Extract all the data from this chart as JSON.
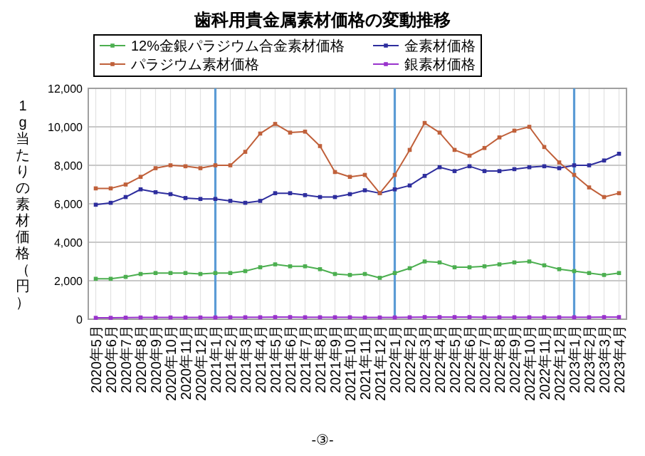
{
  "chart_data": {
    "type": "line",
    "title": "歯科用貴金属素材価格の変動推移",
    "ylabel": "1g当たりの素材価格（円）",
    "categories": [
      "2020年5月",
      "2020年6月",
      "2020年7月",
      "2020年8月",
      "2020年9月",
      "2020年10月",
      "2020年11月",
      "2020年12月",
      "2021年1月",
      "2021年2月",
      "2021年3月",
      "2021年4月",
      "2021年5月",
      "2021年6月",
      "2021年7月",
      "2021年8月",
      "2021年9月",
      "2021年10月",
      "2021年11月",
      "2021年12月",
      "2022年1月",
      "2022年2月",
      "2022年3月",
      "2022年4月",
      "2022年5月",
      "2022年6月",
      "2022年7月",
      "2022年8月",
      "2022年9月",
      "2022年10月",
      "2022年11月",
      "2022年12月",
      "2023年1月",
      "2023年2月",
      "2023年3月",
      "2023年4月"
    ],
    "series": [
      {
        "name": "12%金銀パラジウム合金素材価格",
        "color": "#4caf50",
        "values": [
          2100,
          2100,
          2200,
          2350,
          2400,
          2400,
          2400,
          2350,
          2400,
          2400,
          2500,
          2700,
          2850,
          2750,
          2750,
          2600,
          2350,
          2300,
          2350,
          2150,
          2400,
          2650,
          3000,
          2950,
          2700,
          2700,
          2750,
          2850,
          2950,
          3000,
          2800,
          2600,
          2500,
          2400,
          2300,
          2400
        ]
      },
      {
        "name": "金素材価格",
        "color": "#2e2e9e",
        "values": [
          5950,
          6050,
          6350,
          6750,
          6600,
          6500,
          6300,
          6250,
          6250,
          6150,
          6050,
          6150,
          6550,
          6550,
          6450,
          6350,
          6350,
          6500,
          6700,
          6550,
          6750,
          6950,
          7450,
          7900,
          7700,
          7950,
          7700,
          7700,
          7800,
          7900,
          7950,
          7850,
          8000,
          8000,
          8250,
          8600
        ]
      },
      {
        "name": "パラジウム素材価格",
        "color": "#c0603a",
        "values": [
          6800,
          6800,
          7000,
          7400,
          7850,
          8000,
          7950,
          7850,
          8000,
          8000,
          8700,
          9650,
          10150,
          9700,
          9750,
          9000,
          7650,
          7400,
          7500,
          6550,
          7500,
          8800,
          10200,
          9700,
          8800,
          8500,
          8900,
          9450,
          9800,
          10000,
          8950,
          8150,
          7500,
          6850,
          6350,
          6550
        ]
      },
      {
        "name": "銀素材価格",
        "color": "#9933cc",
        "values": [
          70,
          70,
          80,
          90,
          90,
          90,
          90,
          90,
          90,
          100,
          100,
          100,
          110,
          110,
          100,
          100,
          100,
          100,
          90,
          90,
          90,
          100,
          110,
          110,
          110,
          110,
          100,
          100,
          100,
          100,
          100,
          100,
          100,
          100,
          110,
          110
        ]
      }
    ],
    "ylim": [
      0,
      12000
    ],
    "yticks": [
      0,
      {
        "value": 2000,
        "label": "2,000"
      },
      {
        "value": 4000,
        "label": "4,000"
      },
      {
        "value": 6000,
        "label": "6,000"
      },
      {
        "value": 8000,
        "label": "8,000"
      },
      {
        "value": 10000,
        "label": "10,000"
      },
      {
        "value": 12000,
        "label": "12,000"
      }
    ],
    "ref_lines": [
      {
        "axis": "x",
        "value": "2021年1月",
        "color": "#5b9bd5"
      },
      {
        "axis": "x",
        "value": "2022年1月",
        "color": "#5b9bd5"
      },
      {
        "axis": "x",
        "value": "2023年1月",
        "color": "#5b9bd5"
      }
    ],
    "grid": true,
    "legend": "top",
    "marker": "square",
    "line_style": "solid",
    "annotations": [
      "-③-"
    ]
  }
}
